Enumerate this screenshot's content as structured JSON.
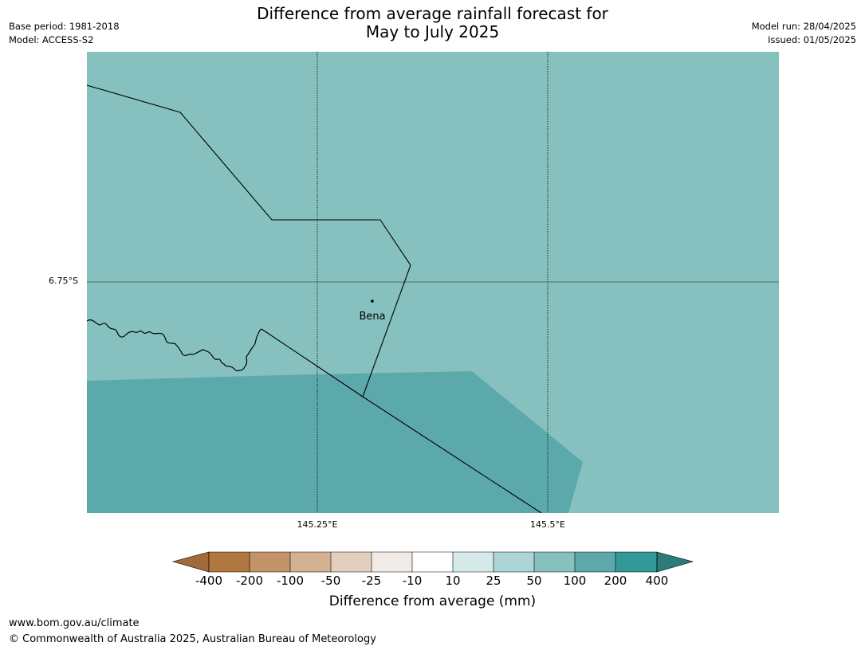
{
  "header": {
    "title_line1": "Difference from average rainfall forecast for",
    "title_line2": "May to July 2025",
    "base_period": "Base period: 1981-2018",
    "model": "Model: ACCESS-S2",
    "model_run": "Model run: 28/04/2025",
    "issued": "Issued: 01/05/2025"
  },
  "map": {
    "lat_label": "6.75°S",
    "lon_labels": [
      "145.25°E",
      "145.5°E"
    ],
    "place_name": "Bena",
    "colors": {
      "band_25_50": "#86c1c0",
      "band_50_100": "#5ca9ab",
      "border_line": "#000000",
      "grid_line": "#000000"
    }
  },
  "legend": {
    "title": "Difference from average (mm)",
    "tick_labels": [
      "-400",
      "-200",
      "-100",
      "-50",
      "-25",
      "-10",
      "10",
      "25",
      "50",
      "100",
      "200",
      "400"
    ],
    "colors": [
      "#a2693a",
      "#b07840",
      "#c39467",
      "#d4b191",
      "#e3cfbd",
      "#f0ebe6",
      "#ffffff",
      "#d7eaea",
      "#acd5d5",
      "#86c1c0",
      "#5ca9ab",
      "#329998",
      "#2a7b79"
    ]
  },
  "footer": {
    "url": "www.bom.gov.au/climate",
    "copyright": "© Commonwealth of Australia 2025, Australian Bureau of Meteorology"
  }
}
